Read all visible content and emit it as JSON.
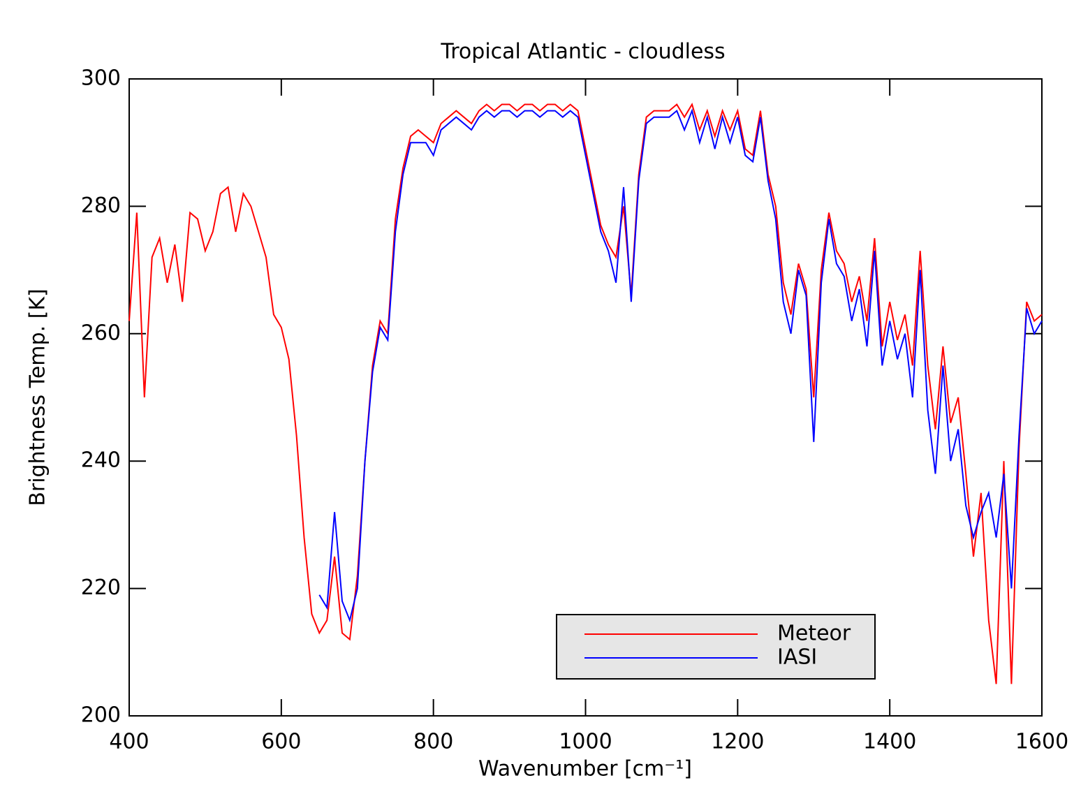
{
  "chart_data": {
    "type": "line",
    "title": "Tropical Atlantic - cloudless",
    "x_label": "Wavenumber [cm⁻¹]",
    "y_label": "Brightness Temp. [K]",
    "x": [
      400,
      410,
      420,
      430,
      440,
      450,
      460,
      470,
      480,
      490,
      500,
      510,
      520,
      530,
      540,
      550,
      560,
      570,
      580,
      590,
      600,
      610,
      620,
      630,
      640,
      650,
      660,
      670,
      680,
      690,
      700,
      710,
      720,
      730,
      740,
      750,
      760,
      770,
      780,
      790,
      800,
      810,
      820,
      830,
      840,
      850,
      860,
      870,
      880,
      890,
      900,
      910,
      920,
      930,
      940,
      950,
      960,
      970,
      980,
      990,
      1000,
      1010,
      1020,
      1030,
      1040,
      1050,
      1060,
      1070,
      1080,
      1090,
      1100,
      1110,
      1120,
      1130,
      1140,
      1150,
      1160,
      1170,
      1180,
      1190,
      1200,
      1210,
      1220,
      1230,
      1240,
      1250,
      1260,
      1270,
      1280,
      1290,
      1300,
      1310,
      1320,
      1330,
      1340,
      1350,
      1360,
      1370,
      1380,
      1390,
      1400,
      1410,
      1420,
      1430,
      1440,
      1450,
      1460,
      1470,
      1480,
      1490,
      1500,
      1510,
      1520,
      1530,
      1540,
      1550,
      1560,
      1570,
      1580,
      1590,
      1600
    ],
    "series": [
      {
        "name": "Meteor",
        "color": "#ff0000",
        "values": [
          262,
          279,
          250,
          272,
          275,
          268,
          274,
          265,
          279,
          278,
          273,
          276,
          282,
          283,
          276,
          282,
          280,
          276,
          272,
          263,
          261,
          256,
          244,
          228,
          216,
          213,
          215,
          225,
          213,
          212,
          222,
          240,
          255,
          262,
          260,
          278,
          286,
          291,
          292,
          291,
          290,
          293,
          294,
          295,
          294,
          293,
          295,
          296,
          295,
          296,
          296,
          295,
          296,
          296,
          295,
          296,
          296,
          295,
          296,
          295,
          289,
          283,
          277,
          274,
          272,
          280,
          266,
          285,
          294,
          295,
          295,
          295,
          296,
          294,
          296,
          292,
          295,
          291,
          295,
          292,
          295,
          289,
          288,
          295,
          285,
          280,
          268,
          263,
          271,
          267,
          250,
          270,
          279,
          273,
          271,
          265,
          269,
          262,
          275,
          258,
          265,
          259,
          263,
          255,
          273,
          255,
          245,
          258,
          246,
          250,
          238,
          225,
          235,
          215,
          205,
          240,
          205,
          242,
          265,
          262,
          263
        ]
      },
      {
        "name": "IASI",
        "color": "#0000ff",
        "values": [
          null,
          null,
          null,
          null,
          null,
          null,
          null,
          null,
          null,
          null,
          null,
          null,
          null,
          null,
          null,
          null,
          null,
          null,
          null,
          null,
          null,
          null,
          null,
          null,
          null,
          219,
          217,
          232,
          218,
          215,
          220,
          240,
          254,
          261,
          259,
          276,
          285,
          290,
          290,
          290,
          288,
          292,
          293,
          294,
          293,
          292,
          294,
          295,
          294,
          295,
          295,
          294,
          295,
          295,
          294,
          295,
          295,
          294,
          295,
          294,
          288,
          282,
          276,
          273,
          268,
          283,
          265,
          284,
          293,
          294,
          294,
          294,
          295,
          292,
          295,
          290,
          294,
          289,
          294,
          290,
          294,
          288,
          287,
          294,
          284,
          278,
          265,
          260,
          270,
          266,
          243,
          268,
          278,
          271,
          269,
          262,
          267,
          258,
          273,
          255,
          262,
          256,
          260,
          250,
          270,
          248,
          238,
          255,
          240,
          245,
          233,
          228,
          232,
          235,
          228,
          238,
          220,
          244,
          264,
          260,
          262
        ]
      }
    ],
    "xlim": [
      400,
      1600
    ],
    "ylim": [
      200,
      300
    ],
    "xticks": [
      400,
      600,
      800,
      1000,
      1200,
      1400,
      1600
    ],
    "yticks": [
      200,
      220,
      240,
      260,
      280,
      300
    ],
    "legend": "lower right",
    "grid": false
  }
}
